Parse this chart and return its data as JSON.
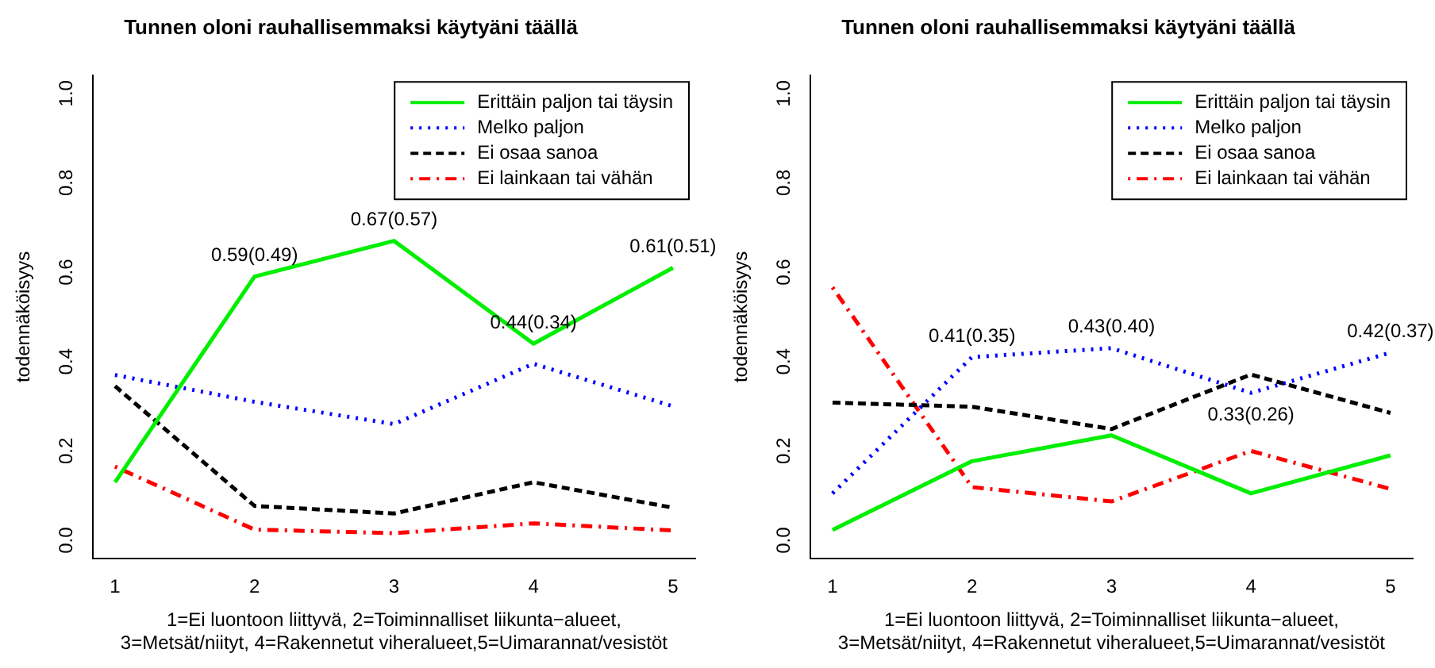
{
  "chart_data": [
    {
      "type": "line",
      "title": "Tunnen oloni rauhallisemmaksi käytyäni täällä",
      "xlabel": "1=Ei luontoon liittyvä, 2=Toiminnalliset liikunta−alueet,\n3=Metsät/niityt, 4=Rakennetut viheralueet,5=Uimarannat/vesistöt",
      "ylabel": "todennäköisyys",
      "x": [
        1,
        2,
        3,
        4,
        5
      ],
      "xlim": [
        0.84,
        5.16
      ],
      "xticks": [
        1,
        2,
        3,
        4,
        5
      ],
      "ylim": [
        -0.04,
        1.04
      ],
      "yticks": [
        {
          "value": 0,
          "label": "0.0"
        },
        {
          "value": 0.2,
          "label": "0.2"
        },
        {
          "value": 0.4,
          "label": "0.4"
        },
        {
          "value": 0.6,
          "label": "0.6"
        },
        {
          "value": 0.8,
          "label": "0.8"
        },
        {
          "value": 1,
          "label": "1.0"
        }
      ],
      "grid": false,
      "legend": "top right",
      "marker": "none",
      "series": [
        {
          "name": "Erittäin paljon tai täysin",
          "color": "#00ee00",
          "line_style": "solid",
          "values": [
            0.13,
            0.59,
            0.67,
            0.44,
            0.61
          ],
          "value_labels": [
            null,
            "0.59(0.49)",
            "0.67(0.57)",
            "0.44(0.34)",
            "0.61(0.51)"
          ]
        },
        {
          "name": "Melko paljon",
          "color": "#0000ff",
          "line_style": "dotted",
          "values": [
            0.37,
            0.31,
            0.26,
            0.395,
            0.3
          ]
        },
        {
          "name": "Ei osaa sanoa",
          "color": "#000000",
          "line_style": "dashed",
          "values": [
            0.345,
            0.077,
            0.06,
            0.13,
            0.073
          ]
        },
        {
          "name": "Ei lainkaan tai vähän",
          "color": "#ff0000",
          "line_style": "dashdot",
          "values": [
            0.165,
            0.024,
            0.016,
            0.038,
            0.022
          ]
        }
      ]
    },
    {
      "type": "line",
      "title": "Tunnen oloni rauhallisemmaksi käytyäni täällä",
      "xlabel": "1=Ei luontoon liittyvä, 2=Toiminnalliset liikunta−alueet,\n3=Metsät/niityt, 4=Rakennetut viheralueet,5=Uimarannat/vesistöt",
      "ylabel": "todennäköisyys",
      "x": [
        1,
        2,
        3,
        4,
        5
      ],
      "xlim": [
        0.84,
        5.16
      ],
      "xticks": [
        1,
        2,
        3,
        4,
        5
      ],
      "ylim": [
        -0.04,
        1.04
      ],
      "yticks": [
        {
          "value": 0,
          "label": "0.0"
        },
        {
          "value": 0.2,
          "label": "0.2"
        },
        {
          "value": 0.4,
          "label": "0.4"
        },
        {
          "value": 0.6,
          "label": "0.6"
        },
        {
          "value": 0.8,
          "label": "0.8"
        },
        {
          "value": 1,
          "label": "1.0"
        }
      ],
      "grid": false,
      "legend": "top right",
      "marker": "none",
      "series": [
        {
          "name": "Erittäin paljon tai täysin",
          "color": "#00ee00",
          "line_style": "solid",
          "values": [
            0.023,
            0.177,
            0.235,
            0.105,
            0.19
          ]
        },
        {
          "name": "Melko paljon",
          "color": "#0000ff",
          "line_style": "dotted",
          "values": [
            0.105,
            0.41,
            0.43,
            0.33,
            0.42
          ],
          "value_labels": [
            null,
            "0.41(0.35)",
            "0.43(0.40)",
            "0.33(0.26)",
            "0.42(0.37)"
          ]
        },
        {
          "name": "Ei osaa sanoa",
          "color": "#000000",
          "line_style": "dashed",
          "values": [
            0.308,
            0.299,
            0.249,
            0.371,
            0.285
          ]
        },
        {
          "name": "Ei lainkaan tai vähän",
          "color": "#ff0000",
          "line_style": "dashdot",
          "values": [
            0.566,
            0.119,
            0.087,
            0.2,
            0.115
          ]
        }
      ]
    }
  ]
}
